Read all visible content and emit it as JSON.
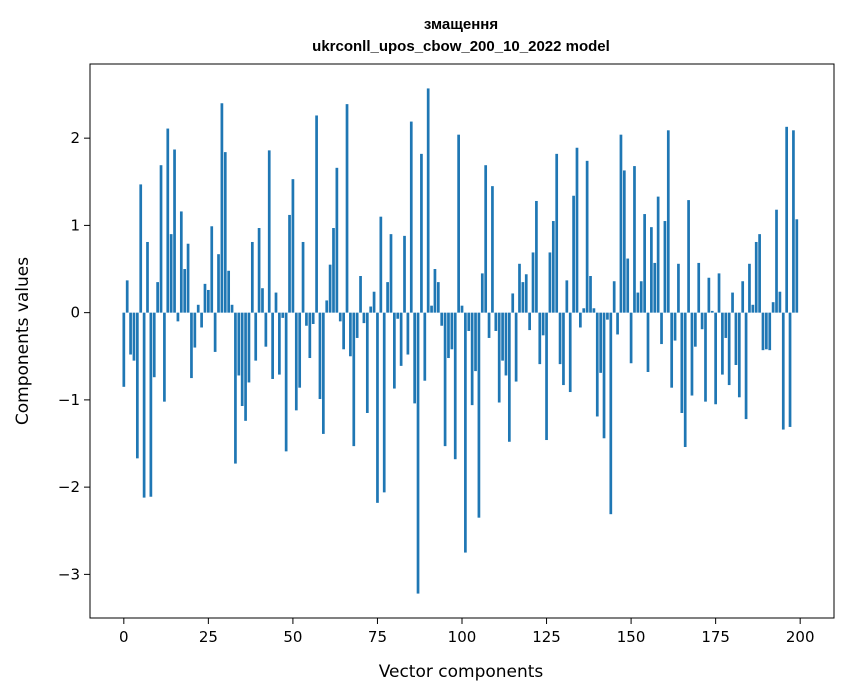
{
  "chart_data": {
    "type": "bar",
    "title": "змащення",
    "subtitle": "ukrconll_upos_cbow_200_10_2022 model",
    "xlabel": "Vector components",
    "ylabel": "Components values",
    "xlim": [
      -10,
      210
    ],
    "ylim": [
      -3.5,
      2.85
    ],
    "xticks": [
      0,
      25,
      50,
      75,
      100,
      125,
      150,
      175,
      200
    ],
    "yticks": [
      -3,
      -2,
      -1,
      0,
      1,
      2
    ],
    "grid": false,
    "legend": "none",
    "bar_color": "#1f77b4",
    "x": [
      0,
      1,
      2,
      3,
      4,
      5,
      6,
      7,
      8,
      9,
      10,
      11,
      12,
      13,
      14,
      15,
      16,
      17,
      18,
      19,
      20,
      21,
      22,
      23,
      24,
      25,
      26,
      27,
      28,
      29,
      30,
      31,
      32,
      33,
      34,
      35,
      36,
      37,
      38,
      39,
      40,
      41,
      42,
      43,
      44,
      45,
      46,
      47,
      48,
      49,
      50,
      51,
      52,
      53,
      54,
      55,
      56,
      57,
      58,
      59,
      60,
      61,
      62,
      63,
      64,
      65,
      66,
      67,
      68,
      69,
      70,
      71,
      72,
      73,
      74,
      75,
      76,
      77,
      78,
      79,
      80,
      81,
      82,
      83,
      84,
      85,
      86,
      87,
      88,
      89,
      90,
      91,
      92,
      93,
      94,
      95,
      96,
      97,
      98,
      99,
      100,
      101,
      102,
      103,
      104,
      105,
      106,
      107,
      108,
      109,
      110,
      111,
      112,
      113,
      114,
      115,
      116,
      117,
      118,
      119,
      120,
      121,
      122,
      123,
      124,
      125,
      126,
      127,
      128,
      129,
      130,
      131,
      132,
      133,
      134,
      135,
      136,
      137,
      138,
      139,
      140,
      141,
      142,
      143,
      144,
      145,
      146,
      147,
      148,
      149,
      150,
      151,
      152,
      153,
      154,
      155,
      156,
      157,
      158,
      159,
      160,
      161,
      162,
      163,
      164,
      165,
      166,
      167,
      168,
      169,
      170,
      171,
      172,
      173,
      174,
      175,
      176,
      177,
      178,
      179,
      180,
      181,
      182,
      183,
      184,
      185,
      186,
      187,
      188,
      189,
      190,
      191,
      192,
      193,
      194,
      195,
      196,
      197,
      198,
      199
    ],
    "values": [
      -0.85,
      0.37,
      -0.48,
      -0.55,
      -1.67,
      1.47,
      -2.12,
      0.81,
      -2.11,
      -0.74,
      0.35,
      1.69,
      -1.02,
      2.11,
      0.9,
      1.87,
      -0.1,
      1.16,
      0.5,
      0.79,
      -0.75,
      -0.4,
      0.09,
      -0.17,
      0.33,
      0.26,
      0.99,
      -0.45,
      0.67,
      2.4,
      1.84,
      0.48,
      0.09,
      -1.73,
      -0.72,
      -1.07,
      -1.24,
      -0.8,
      0.81,
      -0.55,
      0.97,
      0.28,
      -0.39,
      1.86,
      -0.76,
      0.23,
      -0.71,
      -0.06,
      -1.59,
      1.12,
      1.53,
      -1.12,
      -0.86,
      0.81,
      -0.15,
      -0.52,
      -0.13,
      2.26,
      -0.99,
      -1.39,
      0.14,
      0.55,
      0.97,
      1.66,
      -0.1,
      -0.42,
      2.39,
      -0.5,
      -1.53,
      -0.29,
      0.42,
      -0.12,
      -1.15,
      0.07,
      0.24,
      -2.18,
      1.1,
      -2.06,
      0.35,
      0.9,
      -0.87,
      -0.07,
      -0.61,
      0.88,
      -0.48,
      2.19,
      -1.04,
      -3.22,
      1.82,
      -0.78,
      2.57,
      0.08,
      0.5,
      0.35,
      -0.15,
      -1.53,
      -0.52,
      -0.42,
      -1.68,
      2.04,
      0.08,
      -2.75,
      -0.21,
      -1.06,
      -0.67,
      -2.35,
      0.45,
      1.69,
      -0.29,
      1.45,
      -0.21,
      -1.03,
      -0.55,
      -0.72,
      -1.48,
      0.22,
      -0.79,
      0.56,
      0.35,
      0.44,
      -0.2,
      0.69,
      1.28,
      -0.59,
      -0.26,
      -1.46,
      0.69,
      1.05,
      1.82,
      -0.59,
      -0.83,
      0.37,
      -0.91,
      1.34,
      1.89,
      -0.17,
      0.05,
      1.74,
      0.42,
      0.05,
      -1.19,
      -0.69,
      -1.44,
      -0.08,
      -2.31,
      0.36,
      -0.25,
      2.04,
      1.63,
      0.62,
      -0.58,
      1.68,
      0.23,
      0.36,
      1.13,
      -0.68,
      0.98,
      0.57,
      1.33,
      -0.36,
      1.05,
      2.09,
      -0.86,
      -0.32,
      0.56,
      -1.15,
      -1.54,
      1.29,
      -0.95,
      -0.39,
      0.57,
      -0.19,
      -1.02,
      0.4,
      0.02,
      -1.05,
      0.45,
      -0.71,
      -0.29,
      -0.83,
      0.23,
      -0.6,
      -0.97,
      0.36,
      -1.22,
      0.56,
      0.09,
      0.81,
      0.9,
      -0.43,
      -0.42,
      -0.43,
      0.12,
      1.18,
      0.24,
      -1.34,
      2.13,
      -1.31,
      2.09,
      1.07
    ]
  }
}
